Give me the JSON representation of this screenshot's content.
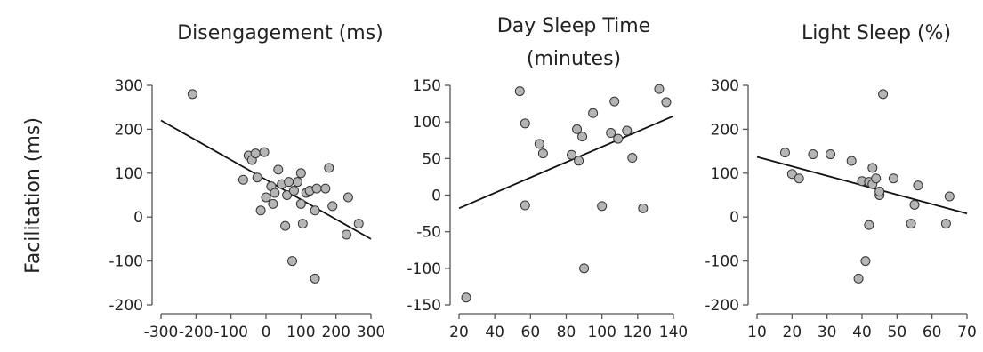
{
  "figure": {
    "ylabel": "Facilitation (ms)"
  },
  "colors": {
    "point_fill": "#b5b5b5",
    "point_stroke": "#333333",
    "trend_line": "#111111",
    "axis": "#555555"
  },
  "chart_data": [
    {
      "type": "scatter",
      "title": [
        "Disengagement (ms)"
      ],
      "xlim": [
        -300,
        300
      ],
      "ylim": [
        -200,
        300
      ],
      "x_ticks": [
        -300,
        -200,
        -100,
        0,
        100,
        200,
        300
      ],
      "y_ticks": [
        -200,
        -100,
        0,
        100,
        200,
        300
      ],
      "trend_line": {
        "x": [
          -300,
          300
        ],
        "y": [
          220,
          -50
        ]
      },
      "points": [
        {
          "x": -210,
          "y": 280
        },
        {
          "x": -65,
          "y": 85
        },
        {
          "x": -50,
          "y": 140
        },
        {
          "x": -40,
          "y": 130
        },
        {
          "x": -30,
          "y": 145
        },
        {
          "x": -25,
          "y": 90
        },
        {
          "x": -15,
          "y": 15
        },
        {
          "x": -5,
          "y": 148
        },
        {
          "x": 0,
          "y": 45
        },
        {
          "x": 15,
          "y": 70
        },
        {
          "x": 20,
          "y": 30
        },
        {
          "x": 25,
          "y": 55
        },
        {
          "x": 35,
          "y": 108
        },
        {
          "x": 45,
          "y": 75
        },
        {
          "x": 55,
          "y": -20
        },
        {
          "x": 60,
          "y": 50
        },
        {
          "x": 65,
          "y": 80
        },
        {
          "x": 75,
          "y": -100
        },
        {
          "x": 80,
          "y": 60
        },
        {
          "x": 90,
          "y": 80
        },
        {
          "x": 100,
          "y": 100
        },
        {
          "x": 100,
          "y": 30
        },
        {
          "x": 105,
          "y": -15
        },
        {
          "x": 115,
          "y": 55
        },
        {
          "x": 125,
          "y": 60
        },
        {
          "x": 140,
          "y": 15
        },
        {
          "x": 145,
          "y": 65
        },
        {
          "x": 140,
          "y": -140
        },
        {
          "x": 170,
          "y": 65
        },
        {
          "x": 180,
          "y": 112
        },
        {
          "x": 190,
          "y": 25
        },
        {
          "x": 230,
          "y": -40
        },
        {
          "x": 235,
          "y": 45
        },
        {
          "x": 265,
          "y": -15
        }
      ]
    },
    {
      "type": "scatter",
      "title": [
        "Day Sleep Time",
        "(minutes)"
      ],
      "xlim": [
        20,
        140
      ],
      "ylim": [
        -150,
        150
      ],
      "x_ticks": [
        20,
        40,
        60,
        80,
        100,
        120,
        140
      ],
      "y_ticks": [
        -150,
        -100,
        -50,
        0,
        50,
        100,
        150
      ],
      "trend_line": {
        "x": [
          20,
          140
        ],
        "y": [
          -18,
          108
        ]
      },
      "points": [
        {
          "x": 24,
          "y": -140
        },
        {
          "x": 54,
          "y": 142
        },
        {
          "x": 57,
          "y": 98
        },
        {
          "x": 57,
          "y": -14
        },
        {
          "x": 65,
          "y": 70
        },
        {
          "x": 67,
          "y": 57
        },
        {
          "x": 83,
          "y": 55
        },
        {
          "x": 86,
          "y": 90
        },
        {
          "x": 87,
          "y": 47
        },
        {
          "x": 89,
          "y": 80
        },
        {
          "x": 90,
          "y": -100
        },
        {
          "x": 95,
          "y": 112
        },
        {
          "x": 100,
          "y": -15
        },
        {
          "x": 105,
          "y": 85
        },
        {
          "x": 107,
          "y": 128
        },
        {
          "x": 109,
          "y": 77
        },
        {
          "x": 114,
          "y": 88
        },
        {
          "x": 117,
          "y": 51
        },
        {
          "x": 123,
          "y": -18
        },
        {
          "x": 132,
          "y": 145
        },
        {
          "x": 136,
          "y": 127
        }
      ]
    },
    {
      "type": "scatter",
      "title": [
        "Light Sleep (%)"
      ],
      "xlim": [
        10,
        70
      ],
      "ylim": [
        -200,
        300
      ],
      "x_ticks": [
        10,
        20,
        30,
        40,
        50,
        60,
        70
      ],
      "y_ticks": [
        -200,
        -100,
        0,
        100,
        200,
        300
      ],
      "trend_line": {
        "x": [
          10,
          70
        ],
        "y": [
          137,
          8
        ]
      },
      "points": [
        {
          "x": 18,
          "y": 147
        },
        {
          "x": 20,
          "y": 98
        },
        {
          "x": 22,
          "y": 88
        },
        {
          "x": 26,
          "y": 143
        },
        {
          "x": 31,
          "y": 143
        },
        {
          "x": 37,
          "y": 128
        },
        {
          "x": 39,
          "y": -140
        },
        {
          "x": 40,
          "y": 82
        },
        {
          "x": 41,
          "y": -100
        },
        {
          "x": 42,
          "y": 80
        },
        {
          "x": 42,
          "y": -18
        },
        {
          "x": 43,
          "y": 112
        },
        {
          "x": 43,
          "y": 75
        },
        {
          "x": 44,
          "y": 88
        },
        {
          "x": 45,
          "y": 50
        },
        {
          "x": 45,
          "y": 58
        },
        {
          "x": 46,
          "y": 280
        },
        {
          "x": 49,
          "y": 88
        },
        {
          "x": 54,
          "y": -15
        },
        {
          "x": 55,
          "y": 28
        },
        {
          "x": 56,
          "y": 72
        },
        {
          "x": 64,
          "y": -15
        },
        {
          "x": 65,
          "y": 47
        }
      ]
    }
  ]
}
